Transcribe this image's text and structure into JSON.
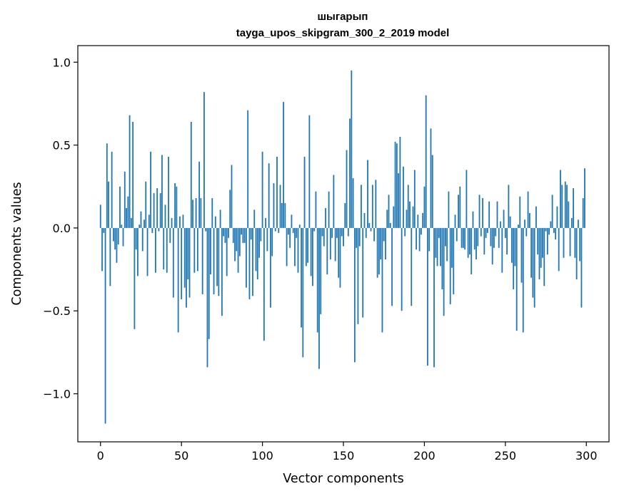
{
  "chart_data": {
    "type": "bar",
    "title_line1": "шыгарып",
    "title_line2": "tayga_upos_skipgram_300_2_2019 model",
    "xlabel": "Vector components",
    "ylabel": "Components values",
    "xlim": [
      -14,
      314
    ],
    "ylim": [
      -1.29,
      1.1
    ],
    "xticks": [
      0,
      50,
      100,
      150,
      200,
      250,
      300
    ],
    "yticks": [
      -1.0,
      -0.5,
      0.0,
      0.5,
      1.0
    ],
    "ytick_labels": [
      "−1.0",
      "−0.5",
      "0.0",
      "0.5",
      "1.0"
    ],
    "color": "#1f77b4",
    "values": [
      0.14,
      -0.26,
      -0.03,
      -1.18,
      0.51,
      0.28,
      -0.35,
      0.46,
      -0.08,
      -0.13,
      -0.21,
      -0.1,
      0.25,
      0.02,
      -0.11,
      0.34,
      0.12,
      0.19,
      0.68,
      0.06,
      0.64,
      -0.61,
      -0.13,
      -0.29,
      0.02,
      0.1,
      -0.14,
      0.05,
      0.28,
      -0.29,
      0.08,
      0.46,
      -0.03,
      0.21,
      -0.27,
      0.24,
      -0.02,
      0.21,
      0.44,
      -0.25,
      0.14,
      -0.27,
      0.43,
      -0.09,
      0.06,
      -0.42,
      0.27,
      0.25,
      -0.63,
      0.07,
      -0.43,
      0.08,
      -0.36,
      -0.48,
      -0.31,
      -0.42,
      0.64,
      0.17,
      -0.27,
      0.18,
      -0.26,
      0.4,
      0.18,
      -0.4,
      0.82,
      -0.02,
      -0.84,
      -0.67,
      -0.28,
      0.18,
      -0.4,
      0.07,
      -0.35,
      -0.41,
      0.11,
      -0.53,
      -0.05,
      -0.09,
      -0.29,
      -0.06,
      0.23,
      0.38,
      -0.09,
      -0.2,
      -0.14,
      -0.27,
      -0.17,
      -0.04,
      -0.09,
      -0.09,
      -0.36,
      0.71,
      -0.43,
      -0.07,
      -0.41,
      0.11,
      -0.26,
      -0.31,
      -0.18,
      -0.08,
      0.46,
      -0.68,
      0.06,
      -0.14,
      0.39,
      -0.48,
      -0.17,
      0.27,
      -0.02,
      0.43,
      -0.03,
      0.26,
      0.15,
      0.76,
      0.15,
      -0.23,
      -0.04,
      -0.12,
      0.08,
      -0.03,
      -0.23,
      -0.06,
      -0.27,
      0.02,
      -0.6,
      -0.78,
      0.43,
      -0.23,
      -0.21,
      0.68,
      -0.29,
      -0.35,
      -0.02,
      0.22,
      -0.63,
      -0.85,
      -0.52,
      -0.05,
      -0.11,
      0.12,
      -0.28,
      0.22,
      -0.19,
      -0.06,
      0.32,
      -0.2,
      -0.06,
      -0.3,
      -0.36,
      -0.05,
      -0.11,
      0.15,
      0.47,
      -0.05,
      0.66,
      0.95,
      0.3,
      -0.81,
      -0.12,
      -0.58,
      -0.11,
      0.26,
      -0.54,
      0.09,
      -0.06,
      0.41,
      0.03,
      -0.02,
      0.26,
      -0.08,
      0.29,
      -0.3,
      -0.28,
      -0.19,
      -0.63,
      -0.08,
      -0.19,
      0.11,
      0.2,
      0.03,
      -0.47,
      0.13,
      0.52,
      0.51,
      0.33,
      0.55,
      -0.5,
      0.37,
      -0.05,
      0.11,
      0.26,
      0.16,
      -0.47,
      0.13,
      0.35,
      -0.13,
      0.08,
      -0.14,
      -0.04,
      0.09,
      0.25,
      0.8,
      -0.83,
      -0.14,
      0.6,
      0.44,
      -0.84,
      -0.18,
      -0.23,
      -0.06,
      -0.23,
      -0.37,
      -0.53,
      -0.11,
      -0.2,
      0.22,
      -0.46,
      -0.24,
      -0.4,
      0.08,
      -0.08,
      0.2,
      0.25,
      -0.12,
      -0.12,
      -0.13,
      0.35,
      -0.18,
      -0.16,
      -0.28,
      0.1,
      -0.13,
      -0.19,
      -0.11,
      0.2,
      -0.05,
      0.18,
      -0.16,
      -0.06,
      -0.03,
      0.16,
      -0.11,
      -0.22,
      -0.12,
      -0.05,
      0.16,
      -0.12,
      0.04,
      -0.27,
      0.11,
      -0.06,
      -0.16,
      0.26,
      0.07,
      -0.21,
      -0.37,
      -0.23,
      -0.62,
      0.02,
      0.19,
      -0.33,
      -0.63,
      0.05,
      -0.05,
      0.22,
      0.09,
      -0.3,
      -0.42,
      -0.48,
      0.13,
      -0.16,
      -0.31,
      -0.24,
      -0.18,
      -0.35,
      -0.02,
      -0.16,
      -0.04,
      0.04,
      0.2,
      -0.03,
      -0.07,
      0.13,
      -0.26,
      0.35,
      0.26,
      -0.18,
      0.28,
      0.26,
      0.16,
      -0.17,
      0.06,
      0.24,
      -0.18,
      -0.31,
      0.05,
      -0.2,
      -0.48,
      0.18,
      0.36
    ]
  }
}
